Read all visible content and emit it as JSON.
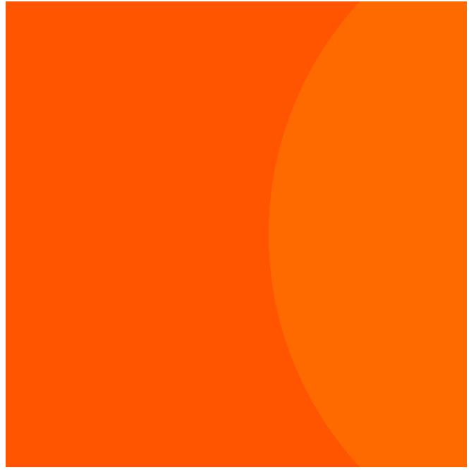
{
  "scene": {
    "subject": "mandelbrot-set",
    "palette": {
      "interior": "#000000",
      "bulb": "#ff0000",
      "band_colors": [
        "#ff3300",
        "#ff5500",
        "#ff6a00",
        "#ff8000",
        "#ff9500",
        "#ffaa00",
        "#ffcc00",
        "#ffee00",
        "#ffff00",
        "#ccff00",
        "#66ff00",
        "#00ff40"
      ]
    },
    "view": {
      "orientation": "cardioid-right",
      "real_range": [
        -2.08,
        0.62
      ],
      "imag_range": [
        -1.36,
        1.36
      ],
      "max_iterations": 60
    }
  }
}
